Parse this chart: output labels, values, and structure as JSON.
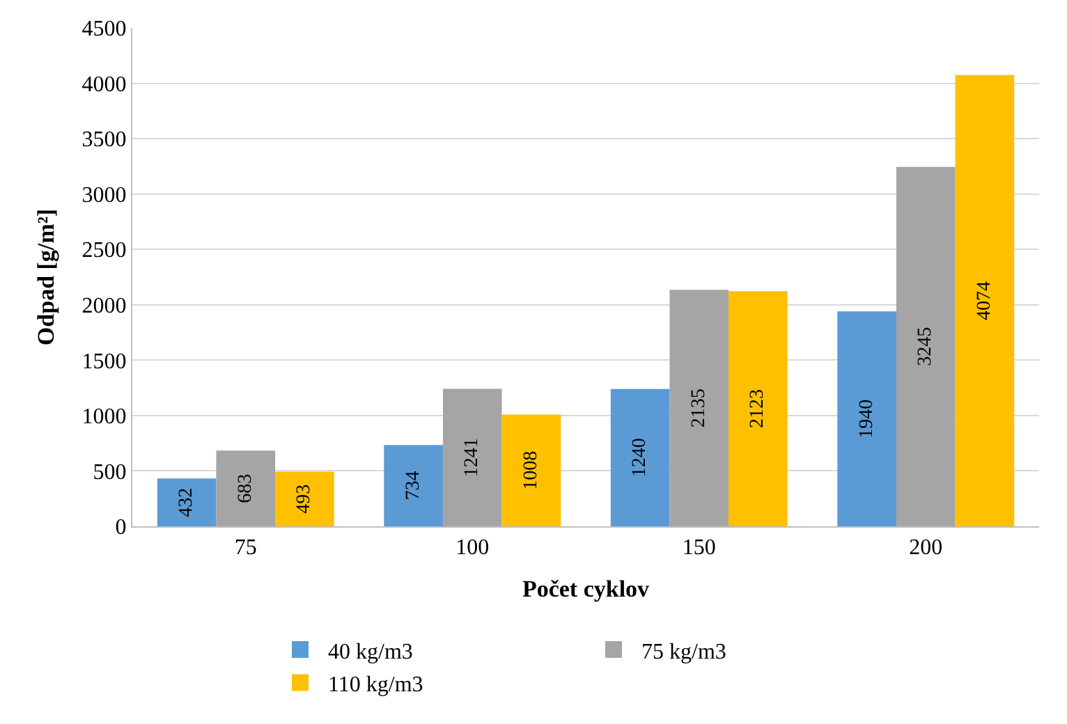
{
  "chart_data": {
    "type": "bar",
    "xlabel": "Počet cyklov",
    "ylabel": "Odpad [g/m²]",
    "categories": [
      "75",
      "100",
      "150",
      "200"
    ],
    "series": [
      {
        "name": "40 kg/m3",
        "color": "#5b9bd5",
        "values": [
          432,
          734,
          1240,
          1940
        ]
      },
      {
        "name": "75 kg/m3",
        "color": "#a5a5a5",
        "values": [
          683,
          1241,
          2135,
          3245
        ]
      },
      {
        "name": "110 kg/m3",
        "color": "#ffc000",
        "values": [
          493,
          1008,
          2123,
          4074
        ]
      }
    ],
    "ylim": [
      0,
      4500
    ],
    "yticks": [
      0,
      500,
      1000,
      1500,
      2000,
      2500,
      3000,
      3500,
      4000,
      4500
    ],
    "grid": "y",
    "legend": "bottom",
    "data_labels": true
  }
}
